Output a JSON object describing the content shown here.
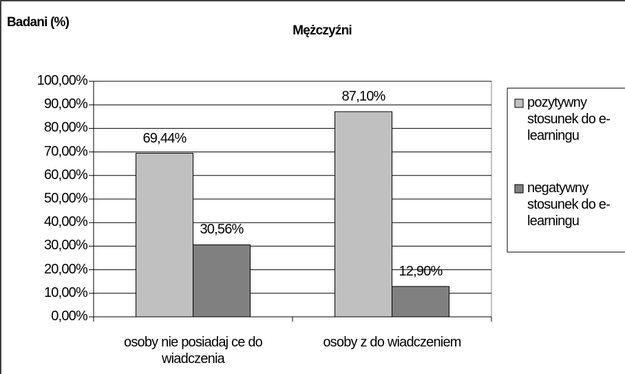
{
  "chart_data": {
    "type": "bar",
    "title": "Mężczyźni",
    "y_label": "Badani (%)",
    "categories": [
      "osoby nie posiadaj ce do wiadczenia",
      "osoby z do wiadczeniem"
    ],
    "series": [
      {
        "name": "pozytywny stosunek do e-learningu",
        "color": "#c0c0c0",
        "values": [
          69.44,
          87.1
        ],
        "value_labels": [
          "69,44%",
          "87,10%"
        ]
      },
      {
        "name": "negatywny stosunek do e-learningu",
        "color": "#808080",
        "values": [
          30.56,
          12.9
        ],
        "value_labels": [
          "30,56%",
          "12,90%"
        ]
      }
    ],
    "ylim": [
      0,
      100
    ],
    "yticks": [
      {
        "value": 0,
        "label": "0,00%"
      },
      {
        "value": 10,
        "label": "10,00%"
      },
      {
        "value": 20,
        "label": "20,00%"
      },
      {
        "value": 30,
        "label": "30,00%"
      },
      {
        "value": 40,
        "label": "40,00%"
      },
      {
        "value": 50,
        "label": "50,00%"
      },
      {
        "value": 60,
        "label": "60,00%"
      },
      {
        "value": 70,
        "label": "70,00%"
      },
      {
        "value": 80,
        "label": "80,00%"
      },
      {
        "value": 90,
        "label": "90,00%"
      },
      {
        "value": 100,
        "label": "100,00%"
      }
    ],
    "grid": true,
    "legend": "right"
  }
}
